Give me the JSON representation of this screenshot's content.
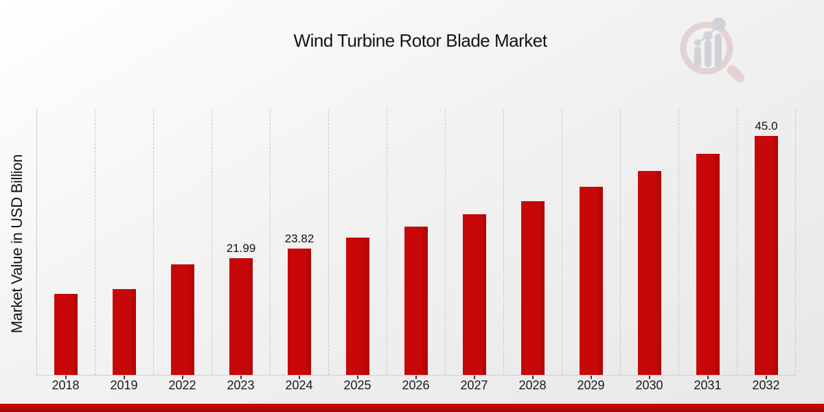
{
  "page": {
    "title": "Wind Turbine Rotor Blade Market"
  },
  "watermark": {
    "icon": "market-research-future-logo",
    "ring_color": "#dcb9b9",
    "bars_color": "#b6bac3"
  },
  "chart_data": {
    "type": "bar",
    "title": "Wind Turbine Rotor Blade Market",
    "xlabel": "",
    "ylabel": "Market Value in USD Billion",
    "categories": [
      "2018",
      "2019",
      "2022",
      "2023",
      "2024",
      "2025",
      "2026",
      "2027",
      "2028",
      "2029",
      "2030",
      "2031",
      "2032"
    ],
    "values": [
      15.2,
      16.2,
      20.75,
      21.99,
      23.82,
      25.79,
      27.93,
      30.24,
      32.74,
      35.45,
      38.39,
      41.56,
      45.0
    ],
    "bar_labels": [
      "",
      "",
      "",
      "21.99",
      "23.82",
      "",
      "",
      "",
      "",
      "",
      "",
      "",
      "45.0"
    ],
    "ylim": [
      0,
      50
    ],
    "grid": "vertical-dashed",
    "legend": "none",
    "bar_color": "#c80808",
    "bar_color_dark": "#b00404",
    "accent_strip_top": "#cb0a0a",
    "accent_strip_bottom": "#a30404"
  }
}
